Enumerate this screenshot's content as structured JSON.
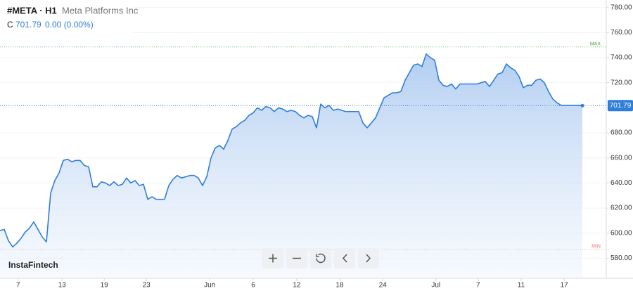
{
  "chart_data": {
    "type": "area",
    "title": "#META · H1",
    "subtitle": "Meta Platforms Inc",
    "close_label": "C",
    "change_label": "0.00 (0.00%)",
    "watermark": "InstaFintech",
    "color": "#2f7ed8",
    "values": [
      602,
      603,
      594,
      589,
      592,
      596,
      601,
      604,
      609,
      603,
      597,
      593,
      632,
      642,
      648,
      658,
      659,
      657,
      658,
      658,
      654,
      653,
      637,
      637,
      641,
      640,
      638,
      641,
      638,
      639,
      644,
      640,
      642,
      638,
      639,
      627,
      629,
      627,
      627,
      627,
      638,
      643,
      646,
      644,
      645,
      646,
      646,
      644,
      638,
      645,
      660,
      668,
      670,
      667,
      674,
      683,
      685,
      688,
      690,
      694,
      696,
      700,
      698,
      701,
      700,
      697,
      700,
      699,
      697,
      698,
      697,
      694,
      692,
      694,
      693,
      684,
      703,
      700,
      702,
      698,
      699,
      698,
      697,
      697,
      697,
      697,
      688,
      684,
      688,
      692,
      700,
      708,
      710,
      712,
      712,
      713,
      722,
      728,
      734,
      735,
      733,
      743,
      740,
      738,
      722,
      718,
      717,
      719,
      715,
      719,
      719,
      719,
      719,
      719,
      720,
      721,
      717,
      722,
      727,
      728,
      735,
      732,
      730,
      725,
      716,
      718,
      718,
      722,
      723,
      720,
      713,
      707,
      704,
      702,
      702,
      702,
      702,
      702,
      701.79
    ],
    "xlim": [
      0,
      143.67
    ],
    "xticks": [
      {
        "value": 4.3,
        "label": "7"
      },
      {
        "value": 14.7,
        "label": "13"
      },
      {
        "value": 24.7,
        "label": "19"
      },
      {
        "value": 34.7,
        "label": "23"
      },
      {
        "value": 49.7,
        "label": "Jun"
      },
      {
        "value": 60,
        "label": "6"
      },
      {
        "value": 70.3,
        "label": "12"
      },
      {
        "value": 80.5,
        "label": "18"
      },
      {
        "value": 90.7,
        "label": "24"
      },
      {
        "value": 103.3,
        "label": "Jul"
      },
      {
        "value": 113.3,
        "label": "7"
      },
      {
        "value": 123.5,
        "label": "11"
      },
      {
        "value": 133.7,
        "label": "17"
      }
    ],
    "ylim": [
      564,
      786
    ],
    "yticks": [
      {
        "value": 580,
        "label": "580.00"
      },
      {
        "value": 600,
        "label": "600.00"
      },
      {
        "value": 620,
        "label": "620.00"
      },
      {
        "value": 640,
        "label": "640.00"
      },
      {
        "value": 660,
        "label": "660.00"
      },
      {
        "value": 680,
        "label": "680.00"
      },
      {
        "value": 700,
        "label": "700.00"
      },
      {
        "value": 720,
        "label": "720.00"
      },
      {
        "value": 740,
        "label": "740.00"
      },
      {
        "value": 760,
        "label": "760.00"
      },
      {
        "value": 780,
        "label": "780.00"
      }
    ],
    "reference_lines": [
      {
        "label": "MAX",
        "value": 748.6,
        "color": "#43a047"
      },
      {
        "label": "MIN",
        "value": 587.3,
        "color": "#e57373"
      }
    ]
  }
}
